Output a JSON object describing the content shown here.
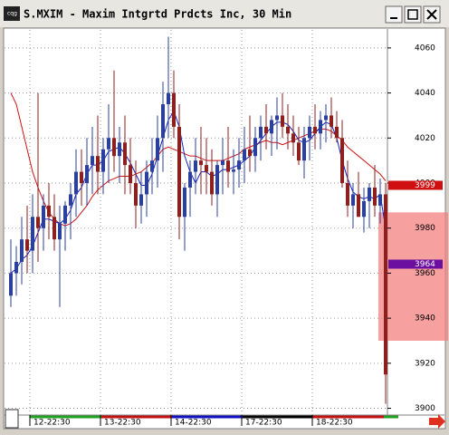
{
  "chart_data": {
    "type": "candlestick",
    "title": "S.MXIM - Maxim Intgrtd Prdcts Inc, 30 Min",
    "categories": [
      null,
      null,
      null,
      null,
      "12-22:30",
      null,
      null,
      null,
      null,
      null,
      null,
      null,
      null,
      null,
      null,
      null,
      null,
      "13-22:30",
      null,
      null,
      null,
      null,
      null,
      null,
      null,
      null,
      null,
      null,
      null,
      null,
      "14-22:30",
      null,
      null,
      null,
      null,
      null,
      null,
      null,
      null,
      null,
      null,
      null,
      null,
      "17-22:30",
      null,
      null,
      null,
      null,
      null,
      null,
      null,
      null,
      null,
      null,
      null,
      null,
      "18-22:30",
      null,
      null,
      null,
      null,
      null,
      null,
      null,
      null,
      null,
      null,
      null,
      null,
      null
    ],
    "open": [
      3950,
      3960,
      3965,
      3975,
      3970,
      3985,
      3980,
      3990,
      3985,
      3975,
      3982,
      3990,
      3995,
      4005,
      4000,
      4008,
      4012,
      4005,
      4015,
      4020,
      4012,
      4018,
      4008,
      4000,
      3990,
      3995,
      4005,
      4010,
      4020,
      4035,
      4040,
      4025,
      3985,
      3998,
      4005,
      4010,
      4008,
      4005,
      3995,
      4008,
      4010,
      4005,
      4006,
      4010,
      4015,
      4012,
      4020,
      4025,
      4022,
      4028,
      4030,
      4025,
      4022,
      4018,
      4010,
      4020,
      4025,
      4022,
      4028,
      4030,
      4025,
      4020,
      4000,
      3990,
      3995,
      3985,
      3992,
      3998,
      3990,
      3995
    ],
    "high": [
      3975,
      3972,
      3985,
      3990,
      3995,
      4040,
      3995,
      4000,
      3995,
      3990,
      3992,
      4000,
      4015,
      4015,
      4020,
      4025,
      4030,
      4020,
      4035,
      4050,
      4025,
      4030,
      4020,
      4010,
      4005,
      4010,
      4020,
      4030,
      4045,
      4065,
      4050,
      4035,
      4000,
      4010,
      4020,
      4025,
      4020,
      4015,
      4010,
      4020,
      4025,
      4015,
      4020,
      4025,
      4030,
      4025,
      4030,
      4035,
      4030,
      4038,
      4040,
      4035,
      4030,
      4025,
      4025,
      4030,
      4035,
      4032,
      4035,
      4038,
      4032,
      4028,
      4010,
      4000,
      4005,
      3998,
      4000,
      4008,
      4002,
      4000
    ],
    "low": [
      3945,
      3950,
      3955,
      3960,
      3960,
      3965,
      3970,
      3975,
      3970,
      3945,
      3970,
      3975,
      3985,
      3990,
      3990,
      3995,
      3995,
      3995,
      4000,
      4005,
      4000,
      3995,
      3995,
      3980,
      3982,
      3985,
      3995,
      3998,
      4005,
      4020,
      4020,
      3975,
      3970,
      3985,
      3995,
      3995,
      3995,
      3990,
      3985,
      3995,
      3998,
      3995,
      3998,
      4000,
      4005,
      4005,
      4010,
      4015,
      4012,
      4015,
      4020,
      4015,
      4012,
      4008,
      4002,
      4010,
      4015,
      4015,
      4018,
      4020,
      4018,
      3998,
      3985,
      3980,
      3985,
      3978,
      3980,
      3985,
      3982,
      3902
    ],
    "close": [
      3960,
      3965,
      3975,
      3970,
      3985,
      3980,
      3990,
      3985,
      3975,
      3982,
      3990,
      3995,
      4005,
      4000,
      4008,
      4012,
      4005,
      4015,
      4020,
      4012,
      4018,
      4008,
      4000,
      3990,
      3995,
      4005,
      4010,
      4020,
      4035,
      4040,
      4025,
      3985,
      3998,
      4005,
      4010,
      4008,
      4005,
      3995,
      4008,
      4010,
      4005,
      4006,
      4010,
      4015,
      4012,
      4020,
      4025,
      4022,
      4028,
      4030,
      4025,
      4022,
      4018,
      4010,
      4020,
      4025,
      4022,
      4028,
      4030,
      4025,
      4020,
      4000,
      3990,
      3995,
      3985,
      3992,
      3998,
      3990,
      3995,
      3915
    ],
    "up_color": "#2b3f9c",
    "down_color": "#8e1f1f",
    "overlays": [
      {
        "color": "#d01010",
        "values": [
          4040,
          4035,
          4025,
          4015,
          4005,
          3998,
          3992,
          3987,
          3984,
          3982,
          3981,
          3982,
          3984,
          3987,
          3990,
          3994,
          3997,
          3999,
          4001,
          4002,
          4003,
          4003,
          4003,
          4004,
          4005,
          4007,
          4009,
          4012,
          4015,
          4016,
          4015,
          4014,
          4013,
          4012,
          4012,
          4011,
          4010,
          4010,
          4010,
          4010,
          4011,
          4012,
          4013,
          4015,
          4016,
          4017,
          4018,
          4019,
          4018,
          4018,
          4017,
          4018,
          4019,
          4020,
          4021,
          4022,
          4023,
          4024,
          4024,
          4023,
          4021,
          4019,
          4016,
          4014,
          4012,
          4010,
          4008,
          4006,
          4004,
          4001
        ]
      },
      {
        "color": "#1020c0",
        "values": [
          3960,
          3962,
          3966,
          3968,
          3972,
          3978,
          3984,
          3984,
          3983,
          3982,
          3984,
          3988,
          3995,
          3998,
          4004,
          4008,
          4008,
          4010,
          4014,
          4015,
          4016,
          4013,
          4009,
          4004,
          3999,
          3999,
          4004,
          4012,
          4020,
          4028,
          4032,
          4025,
          4012,
          4005,
          4000,
          4005,
          4005,
          4003,
          4004,
          4006,
          4006,
          4007,
          4008,
          4010,
          4012,
          4016,
          4019,
          4022,
          4025,
          4027,
          4027,
          4026,
          4023,
          4019,
          4018,
          4019,
          4022,
          4025,
          4027,
          4026,
          4020,
          4010,
          4002,
          3996,
          3994,
          3993,
          3994,
          3993,
          3995,
          3980
        ]
      }
    ],
    "ylim": [
      3897,
      4068
    ],
    "yticks": [
      3900,
      3920,
      3940,
      3960,
      3980,
      4000,
      4020,
      4040,
      4060
    ],
    "grid": true,
    "highlight_range": [
      3930,
      3987
    ],
    "highlight_color": "#f48080",
    "price_labels": [
      {
        "value": 3999,
        "color": "#d01010"
      },
      {
        "value": 3964,
        "color": "#6a0fa0"
      }
    ]
  }
}
